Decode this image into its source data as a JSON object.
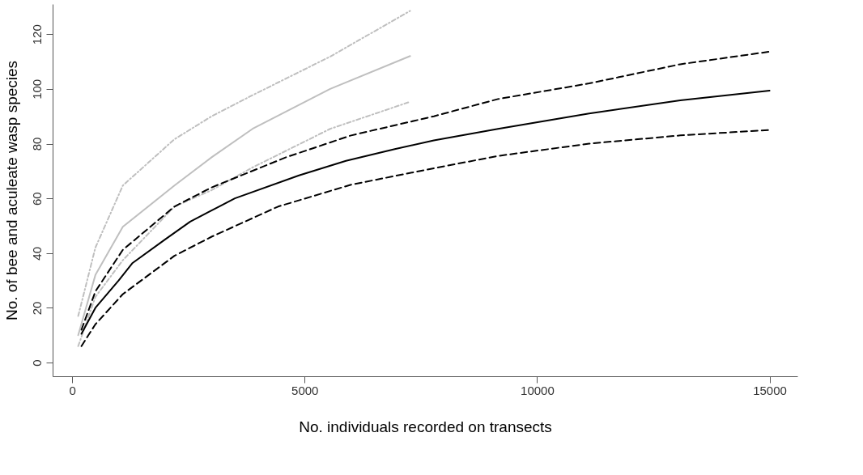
{
  "chart_data": {
    "type": "line",
    "xlabel": "No. individuals recorded on transects",
    "ylabel": "No. of bee and aculeate wasp species",
    "xlim": [
      -420,
      15600
    ],
    "xticks": [
      0,
      5000,
      10000,
      15000
    ],
    "ylim": [
      -5,
      131
    ],
    "yticks": [
      0,
      20,
      40,
      60,
      80,
      100,
      120
    ],
    "grid": false,
    "series": [
      {
        "color": "#bfbfbf",
        "line_style": "dashdot",
        "x": [
          130,
          500,
          1090,
          2200,
          3000,
          3880,
          5550,
          7270
        ],
        "values": [
          17,
          42,
          64.7,
          81.6,
          90,
          97.7,
          111.8,
          128.5
        ]
      },
      {
        "color": "#bfbfbf",
        "line_style": "solid",
        "x": [
          130,
          500,
          1090,
          2200,
          3000,
          3880,
          5550,
          7270
        ],
        "values": [
          10,
          32,
          49.6,
          64.7,
          75,
          85.4,
          100,
          112
        ]
      },
      {
        "color": "#bfbfbf",
        "line_style": "dashdot",
        "x": [
          130,
          500,
          1090,
          2200,
          3000,
          3880,
          5550,
          7270
        ],
        "values": [
          6,
          24,
          37.4,
          57,
          63,
          71.3,
          85.4,
          95.3
        ]
      },
      {
        "color": "#000000",
        "line_style": "dashed",
        "x": [
          200,
          500,
          1090,
          2200,
          3000,
          4600,
          6000,
          7780,
          9160,
          11120,
          13080,
          15000
        ],
        "values": [
          12,
          26,
          41.2,
          57,
          64,
          75,
          83,
          90,
          96.3,
          102,
          109,
          113.6
        ]
      },
      {
        "color": "#000000",
        "line_style": "solid",
        "x": [
          200,
          500,
          1000,
          1300,
          2000,
          2540,
          3500,
          4880,
          5890,
          6940,
          7780,
          9160,
          11120,
          13080,
          15000
        ],
        "values": [
          10.5,
          20,
          30,
          36.4,
          45,
          51.5,
          60,
          68.4,
          73.7,
          78,
          81.2,
          85.4,
          91,
          95.8,
          99.4
        ]
      },
      {
        "color": "#000000",
        "line_style": "dashed",
        "x": [
          200,
          500,
          1090,
          2200,
          3000,
          4430,
          6000,
          7780,
          9160,
          11120,
          13080,
          15000
        ],
        "values": [
          6,
          14,
          25,
          39,
          46,
          57,
          65,
          71,
          75.5,
          80,
          83,
          85
        ]
      }
    ]
  }
}
